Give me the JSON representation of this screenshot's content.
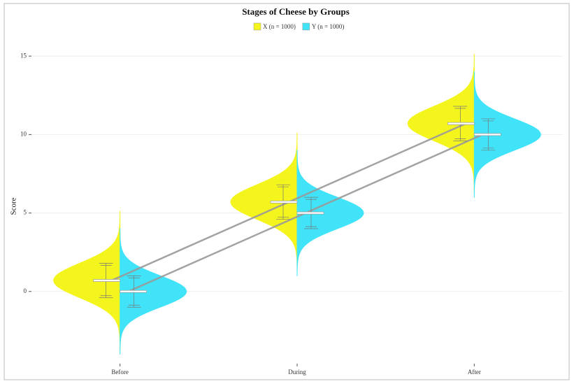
{
  "chart_data": {
    "type": "split-violin",
    "title": "Stages of Cheese by Groups",
    "y_label": "Score",
    "categories": [
      "Before",
      "During",
      "After"
    ],
    "series": [
      {
        "name": "X (n = 1000)",
        "color": "#f5f51e",
        "values": [
          0.7,
          5.7,
          10.7
        ],
        "errors": [
          1.1,
          1.1,
          1.1
        ]
      },
      {
        "name": "Y (n = 1000)",
        "color": "#40e3f8",
        "values": [
          0,
          5,
          10
        ],
        "errors": [
          1.0,
          1.0,
          1.0
        ]
      }
    ],
    "ylim": [
      -4.6,
      15.9
    ],
    "yticks": [
      0,
      5,
      10,
      15
    ],
    "grid": true,
    "legend": "top"
  }
}
